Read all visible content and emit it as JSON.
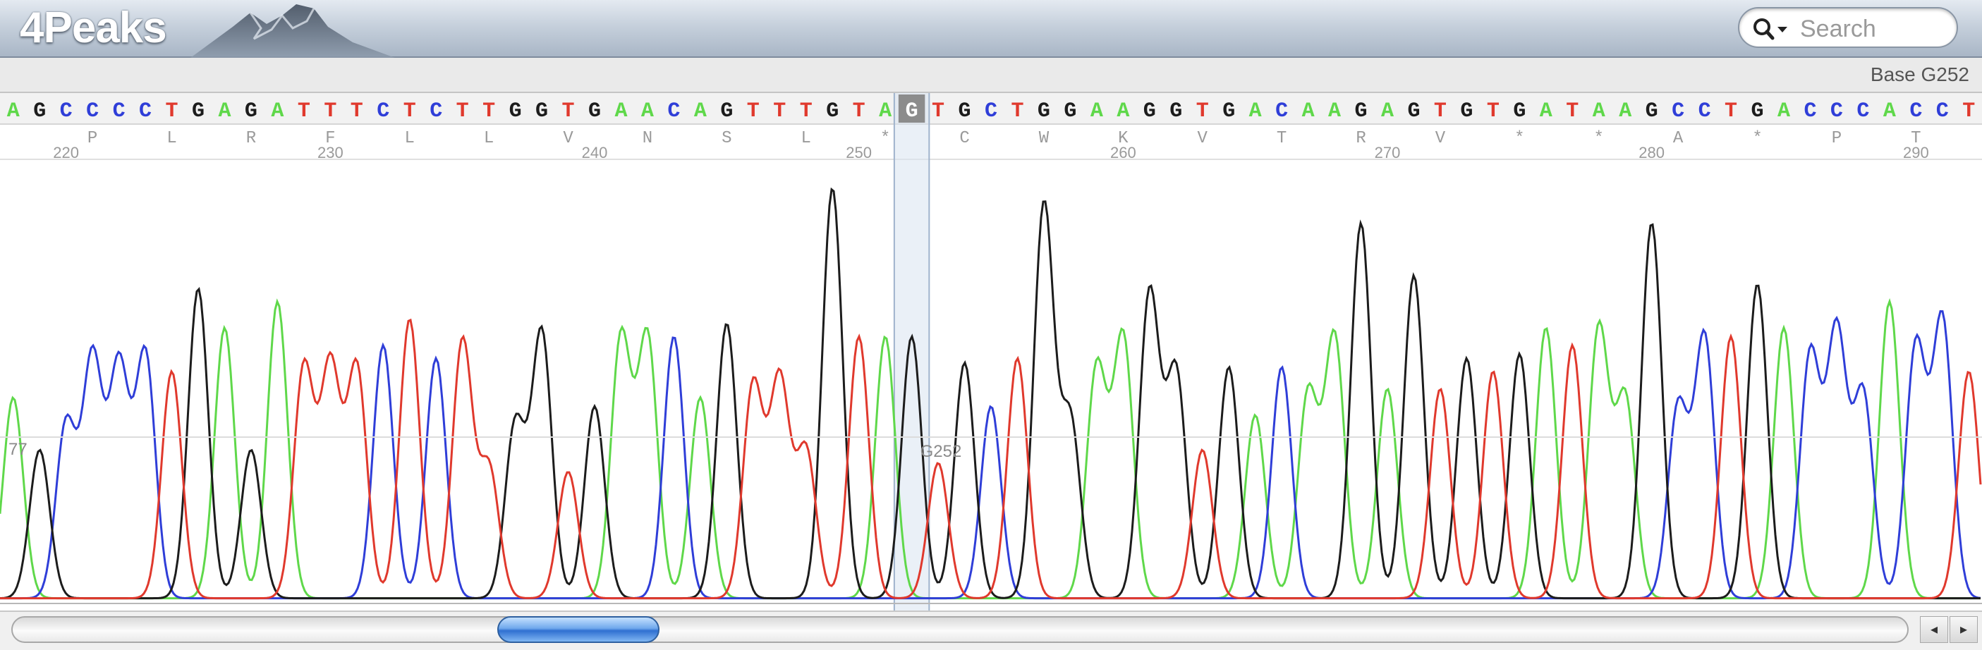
{
  "app": {
    "title": "4Peaks"
  },
  "search": {
    "placeholder": "Search",
    "icon": "magnifier-dropdown-icon"
  },
  "status": {
    "text": "Base G252"
  },
  "colors": {
    "A": "#5fd84a",
    "C": "#2f3ed8",
    "G": "#1c1c1c",
    "T": "#e0392d"
  },
  "sequence": "AGCCCCTGAGATTTCTCTTGGTGAACAGTTTGTAGTGCTGGAAGGTGACAAGAGTGTGATAAGCCTGACCCACCT",
  "highlighted_base": {
    "index": 34,
    "base": "G",
    "label": "G252"
  },
  "translation": [
    "P",
    "L",
    "R",
    "F",
    "L",
    "L",
    "V",
    "N",
    "S",
    "L",
    "*",
    "C",
    "W",
    "K",
    "V",
    "T",
    "R",
    "V",
    "*",
    "*",
    "A",
    "*",
    "P",
    "T"
  ],
  "position_ticks": [
    "220",
    "230",
    "240",
    "250",
    "260",
    "270",
    "280",
    "290"
  ],
  "left_quality_label": "77",
  "peaks": {
    "A": [
      0.46,
      0.62,
      0.68,
      0.6,
      0.6,
      0.46,
      0.6,
      0.53,
      0.6,
      0.42,
      0.47,
      0.6,
      0.48,
      0.62,
      0.62
    ],
    "C": [
      0.4,
      0.55,
      0.53,
      0.56,
      0.58,
      0.55,
      0.6,
      0.44,
      0.53,
      0.44,
      0.6,
      0.56,
      0.61,
      0.47,
      0.58,
      0.64,
      0.62,
      0.6
    ],
    "G": [
      0.34,
      0.71,
      0.34,
      0.4,
      0.61,
      0.44,
      0.63,
      0.94,
      0.6,
      0.54,
      0.9,
      0.41,
      0.7,
      0.52,
      0.53,
      0.86,
      0.74,
      0.55,
      0.56,
      0.86,
      0.72,
      0.57,
      0.86
    ],
    "T": [
      0.52,
      0.53,
      0.53,
      0.53,
      0.64,
      0.59,
      0.3,
      0.29,
      0.49,
      0.5,
      0.34,
      0.6,
      0.31,
      0.55,
      0.34,
      0.48,
      0.52,
      0.58,
      0.6
    ]
  },
  "scroll": {
    "position": 0.28,
    "left_arrow": "◂",
    "right_arrow": "▸"
  }
}
